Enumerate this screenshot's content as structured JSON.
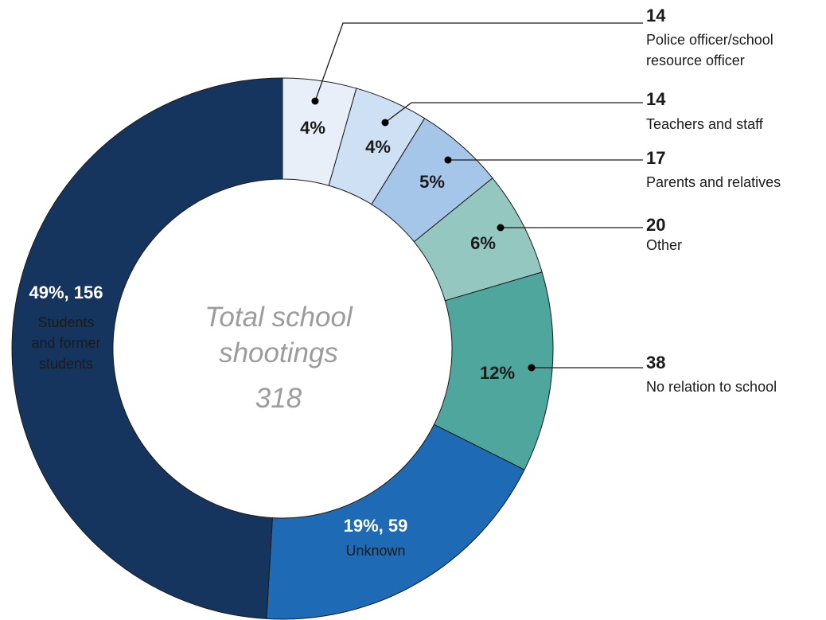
{
  "chart_data": {
    "type": "pie",
    "variant": "donut",
    "title": "",
    "center_label": [
      "Total school",
      "shootings",
      "318"
    ],
    "total": 318,
    "slices": [
      {
        "name": "Police officer/school resource officer",
        "name_lines": [
          "Police officer/school",
          "resource officer"
        ],
        "count": 14,
        "percent": 4,
        "label": "4%",
        "color": "#e9eff9",
        "text_color": "#1a1a1a",
        "callout": true
      },
      {
        "name": "Teachers and staff",
        "name_lines": [
          "Teachers and staff"
        ],
        "count": 14,
        "percent": 4,
        "label": "4%",
        "color": "#cde0f4",
        "text_color": "#1a1a1a",
        "callout": true
      },
      {
        "name": "Parents and relatives",
        "name_lines": [
          "Parents and relatives"
        ],
        "count": 17,
        "percent": 5,
        "label": "5%",
        "color": "#a5c6e8",
        "text_color": "#1a1a1a",
        "callout": true
      },
      {
        "name": "Other",
        "name_lines": [
          "Other"
        ],
        "count": 20,
        "percent": 6,
        "label": "6%",
        "color": "#93c7bf",
        "text_color": "#1a1a1a",
        "callout": true
      },
      {
        "name": "No relation to school",
        "name_lines": [
          "No relation to school"
        ],
        "count": 38,
        "percent": 12,
        "label": "12%",
        "color": "#4ea69d",
        "text_color": "#1a1a1a",
        "callout": true
      },
      {
        "name": "Unknown",
        "name_lines": [
          "Unknown"
        ],
        "count": 59,
        "percent": 19,
        "label": "19%, 59",
        "color": "#1f6ab4",
        "text_color": "#ffffff",
        "callout": false
      },
      {
        "name": "Students and former students",
        "name_lines": [
          "Students",
          "and former",
          "students"
        ],
        "count": 156,
        "percent": 49,
        "label": "49%, 156",
        "color": "#16355e",
        "text_color": "#ffffff",
        "callout": false
      }
    ]
  }
}
